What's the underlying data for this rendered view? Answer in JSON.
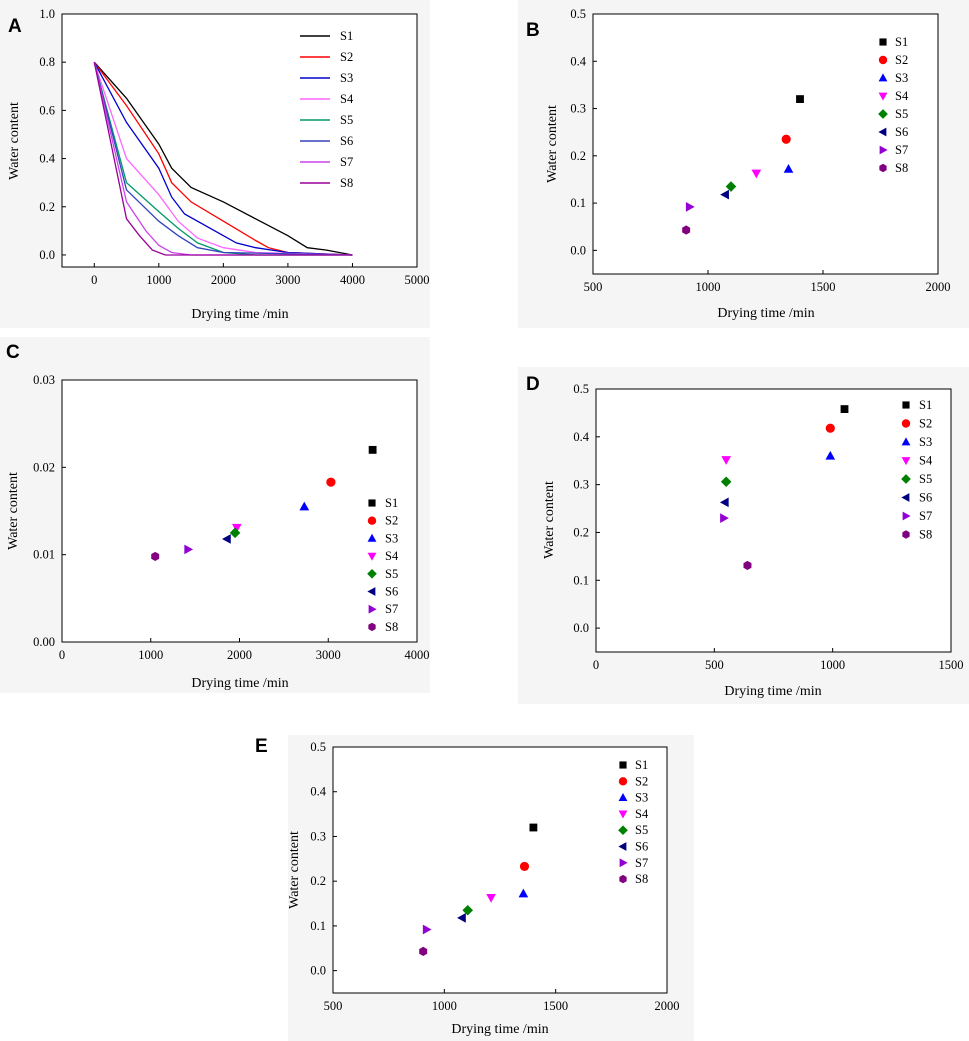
{
  "series_meta": [
    {
      "name": "S1",
      "color": "#000000",
      "marker": "square"
    },
    {
      "name": "S2",
      "color": "#ff0000",
      "marker": "circle"
    },
    {
      "name": "S3",
      "color": "#0000ff",
      "marker": "triangle-up"
    },
    {
      "name": "S4",
      "color": "#ff00ff",
      "marker": "triangle-down"
    },
    {
      "name": "S5",
      "color": "#008000",
      "marker": "diamond"
    },
    {
      "name": "S6",
      "color": "#000080",
      "marker": "triangle-left"
    },
    {
      "name": "S7",
      "color": "#9400d3",
      "marker": "triangle-right"
    },
    {
      "name": "S8",
      "color": "#800080",
      "marker": "hexagon"
    }
  ],
  "line_colors": [
    "#000000",
    "#ff0000",
    "#0000cd",
    "#ff66ff",
    "#009966",
    "#3344bb",
    "#cc44ee",
    "#990099"
  ],
  "chart_data": [
    {
      "panel": "A",
      "type": "line",
      "xlabel": "Drying time /min",
      "ylabel": "Water content",
      "xlim": [
        -500,
        5000
      ],
      "ylim": [
        -0.05,
        1.0
      ],
      "xticks": [
        0,
        1000,
        2000,
        3000,
        4000,
        5000
      ],
      "yticks": [
        0.0,
        0.2,
        0.4,
        0.6,
        0.8,
        1.0
      ],
      "ytick_decimals": 1,
      "legend": "top-right",
      "series": [
        {
          "name": "S1",
          "x": [
            0,
            500,
            1000,
            1200,
            1500,
            2000,
            2500,
            3000,
            3300,
            3600,
            4000
          ],
          "y": [
            0.8,
            0.65,
            0.46,
            0.36,
            0.28,
            0.22,
            0.15,
            0.08,
            0.03,
            0.02,
            0.0
          ]
        },
        {
          "name": "S2",
          "x": [
            0,
            500,
            1000,
            1200,
            1500,
            2000,
            2500,
            2700,
            3000,
            4000
          ],
          "y": [
            0.8,
            0.62,
            0.42,
            0.3,
            0.22,
            0.14,
            0.06,
            0.03,
            0.01,
            0.0
          ]
        },
        {
          "name": "S3",
          "x": [
            0,
            500,
            1000,
            1200,
            1400,
            2000,
            2200,
            2500,
            3000,
            4000
          ],
          "y": [
            0.8,
            0.55,
            0.36,
            0.24,
            0.17,
            0.08,
            0.05,
            0.03,
            0.01,
            0.0
          ]
        },
        {
          "name": "S4",
          "x": [
            0,
            500,
            1000,
            1300,
            1600,
            2000,
            2500,
            4000
          ],
          "y": [
            0.8,
            0.4,
            0.25,
            0.14,
            0.07,
            0.03,
            0.01,
            0.0
          ]
        },
        {
          "name": "S5",
          "x": [
            0,
            500,
            1000,
            1300,
            1600,
            2000,
            2500,
            4000
          ],
          "y": [
            0.8,
            0.3,
            0.18,
            0.11,
            0.05,
            0.01,
            0.0,
            0.0
          ]
        },
        {
          "name": "S6",
          "x": [
            0,
            500,
            1000,
            1300,
            1600,
            2000,
            4000
          ],
          "y": [
            0.8,
            0.27,
            0.14,
            0.08,
            0.03,
            0.01,
            0.0
          ]
        },
        {
          "name": "S7",
          "x": [
            0,
            500,
            800,
            1000,
            1200,
            1500,
            4000
          ],
          "y": [
            0.8,
            0.22,
            0.1,
            0.04,
            0.01,
            0.0,
            0.0
          ]
        },
        {
          "name": "S8",
          "x": [
            0,
            500,
            700,
            900,
            1100,
            1400,
            4000
          ],
          "y": [
            0.8,
            0.15,
            0.08,
            0.02,
            0.0,
            0.0,
            0.0
          ]
        }
      ]
    },
    {
      "panel": "B",
      "type": "scatter",
      "xlabel": "Drying time /min",
      "ylabel": "Water content",
      "xlim": [
        500,
        2000
      ],
      "ylim": [
        -0.05,
        0.5
      ],
      "xticks": [
        500,
        1000,
        1500,
        2000
      ],
      "yticks": [
        0.0,
        0.1,
        0.2,
        0.3,
        0.4,
        0.5
      ],
      "ytick_decimals": 1,
      "legend": "top-right",
      "series": [
        {
          "name": "S1",
          "x": [
            1400
          ],
          "y": [
            0.32
          ]
        },
        {
          "name": "S2",
          "x": [
            1340
          ],
          "y": [
            0.235
          ]
        },
        {
          "name": "S3",
          "x": [
            1350
          ],
          "y": [
            0.172
          ]
        },
        {
          "name": "S4",
          "x": [
            1210
          ],
          "y": [
            0.163
          ]
        },
        {
          "name": "S5",
          "x": [
            1100
          ],
          "y": [
            0.135
          ]
        },
        {
          "name": "S6",
          "x": [
            1075
          ],
          "y": [
            0.118
          ]
        },
        {
          "name": "S7",
          "x": [
            920
          ],
          "y": [
            0.092
          ]
        },
        {
          "name": "S8",
          "x": [
            905
          ],
          "y": [
            0.043
          ]
        }
      ]
    },
    {
      "panel": "C",
      "type": "scatter",
      "xlabel": "Drying time /min",
      "ylabel": "Water content",
      "xlim": [
        0,
        4000
      ],
      "ylim": [
        0.0,
        0.03
      ],
      "xticks": [
        0,
        1000,
        2000,
        3000,
        4000
      ],
      "yticks": [
        0.0,
        0.01,
        0.02,
        0.03
      ],
      "ytick_decimals": 2,
      "legend": "bottom-right",
      "series": [
        {
          "name": "S1",
          "x": [
            3500
          ],
          "y": [
            0.022
          ]
        },
        {
          "name": "S2",
          "x": [
            3030
          ],
          "y": [
            0.0183
          ]
        },
        {
          "name": "S3",
          "x": [
            2730
          ],
          "y": [
            0.0155
          ]
        },
        {
          "name": "S4",
          "x": [
            1970
          ],
          "y": [
            0.0131
          ]
        },
        {
          "name": "S5",
          "x": [
            1950
          ],
          "y": [
            0.0125
          ]
        },
        {
          "name": "S6",
          "x": [
            1860
          ],
          "y": [
            0.0118
          ]
        },
        {
          "name": "S7",
          "x": [
            1420
          ],
          "y": [
            0.0106
          ]
        },
        {
          "name": "S8",
          "x": [
            1050
          ],
          "y": [
            0.0098
          ]
        }
      ]
    },
    {
      "panel": "D",
      "type": "scatter",
      "xlabel": "Drying time /min",
      "ylabel": "Water content",
      "xlim": [
        0,
        1500
      ],
      "ylim": [
        -0.05,
        0.5
      ],
      "xticks": [
        0,
        500,
        1000,
        1500
      ],
      "yticks": [
        0.0,
        0.1,
        0.2,
        0.3,
        0.4,
        0.5
      ],
      "ytick_decimals": 1,
      "legend": "top-right",
      "series": [
        {
          "name": "S1",
          "x": [
            1050
          ],
          "y": [
            0.458
          ]
        },
        {
          "name": "S2",
          "x": [
            990
          ],
          "y": [
            0.418
          ]
        },
        {
          "name": "S3",
          "x": [
            990
          ],
          "y": [
            0.36
          ]
        },
        {
          "name": "S4",
          "x": [
            550
          ],
          "y": [
            0.352
          ]
        },
        {
          "name": "S5",
          "x": [
            550
          ],
          "y": [
            0.306
          ]
        },
        {
          "name": "S6",
          "x": [
            545
          ],
          "y": [
            0.263
          ]
        },
        {
          "name": "S7",
          "x": [
            540
          ],
          "y": [
            0.23
          ]
        },
        {
          "name": "S8",
          "x": [
            640
          ],
          "y": [
            0.131
          ]
        }
      ]
    },
    {
      "panel": "E",
      "type": "scatter",
      "xlabel": "Drying time /min",
      "ylabel": "Water content",
      "xlim": [
        500,
        2000
      ],
      "ylim": [
        -0.05,
        0.5
      ],
      "xticks": [
        500,
        1000,
        1500,
        2000
      ],
      "yticks": [
        0.0,
        0.1,
        0.2,
        0.3,
        0.4,
        0.5
      ],
      "ytick_decimals": 1,
      "legend": "top-right",
      "series": [
        {
          "name": "S1",
          "x": [
            1400
          ],
          "y": [
            0.32
          ]
        },
        {
          "name": "S2",
          "x": [
            1360
          ],
          "y": [
            0.233
          ]
        },
        {
          "name": "S3",
          "x": [
            1355
          ],
          "y": [
            0.172
          ]
        },
        {
          "name": "S4",
          "x": [
            1210
          ],
          "y": [
            0.163
          ]
        },
        {
          "name": "S5",
          "x": [
            1105
          ],
          "y": [
            0.135
          ]
        },
        {
          "name": "S6",
          "x": [
            1080
          ],
          "y": [
            0.118
          ]
        },
        {
          "name": "S7",
          "x": [
            920
          ],
          "y": [
            0.092
          ]
        },
        {
          "name": "S8",
          "x": [
            905
          ],
          "y": [
            0.043
          ]
        }
      ]
    }
  ]
}
